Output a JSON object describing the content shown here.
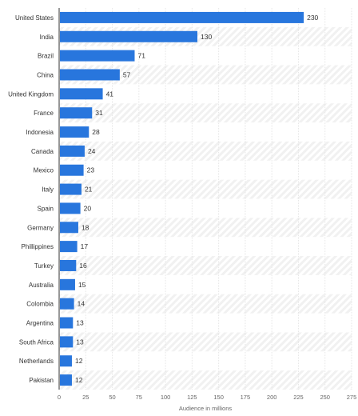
{
  "chart_data": {
    "type": "bar",
    "orientation": "horizontal",
    "categories": [
      "United States",
      "India",
      "Brazil",
      "China",
      "United Kingdom",
      "France",
      "Indonesia",
      "Canada",
      "Mexico",
      "Italy",
      "Spain",
      "Germany",
      "Phillippines",
      "Turkey",
      "Australia",
      "Colombia",
      "Argentina",
      "South Africa",
      "Netherlands",
      "Pakistan"
    ],
    "values": [
      230,
      130,
      71,
      57,
      41,
      31,
      28,
      24,
      23,
      21,
      20,
      18,
      17,
      16,
      15,
      14,
      13,
      13,
      12,
      12
    ],
    "xlabel": "Audience in millions",
    "ylabel": "",
    "xlim": [
      0,
      275
    ],
    "xticks": [
      0,
      25,
      50,
      75,
      100,
      125,
      150,
      175,
      200,
      225,
      250,
      275
    ],
    "grid": true,
    "bar_color": "#2876dd",
    "stripe_color": "#f4f4f4"
  }
}
